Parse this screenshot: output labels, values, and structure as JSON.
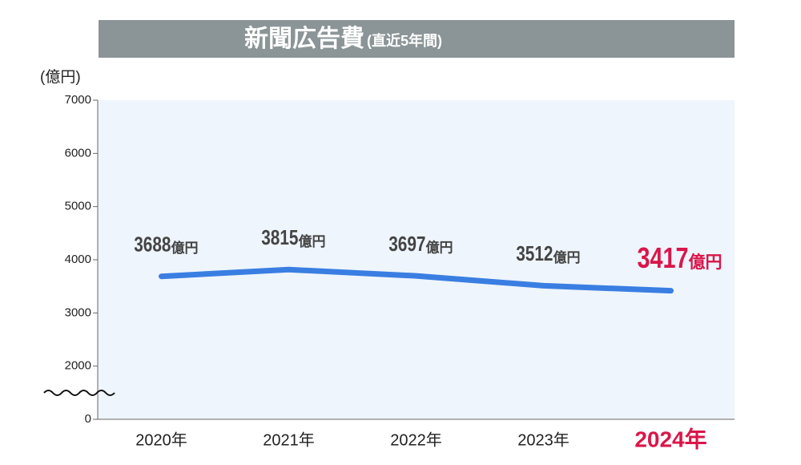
{
  "chart_data": {
    "type": "line",
    "title": "新聞広告費",
    "subtitle": "(直近5年間)",
    "y_label": "(億円)",
    "value_unit": "億円",
    "categories": [
      "2020年",
      "2021年",
      "2022年",
      "2023年",
      "2024年"
    ],
    "values": [
      3688,
      3815,
      3697,
      3512,
      3417
    ],
    "color": "#3a7ee2",
    "highlight_index": 4,
    "highlight_color": "#d9164a",
    "ylim": [
      0,
      7000
    ],
    "yticks": [
      0,
      2000,
      3000,
      4000,
      5000,
      6000,
      7000
    ],
    "axis_break": true
  }
}
